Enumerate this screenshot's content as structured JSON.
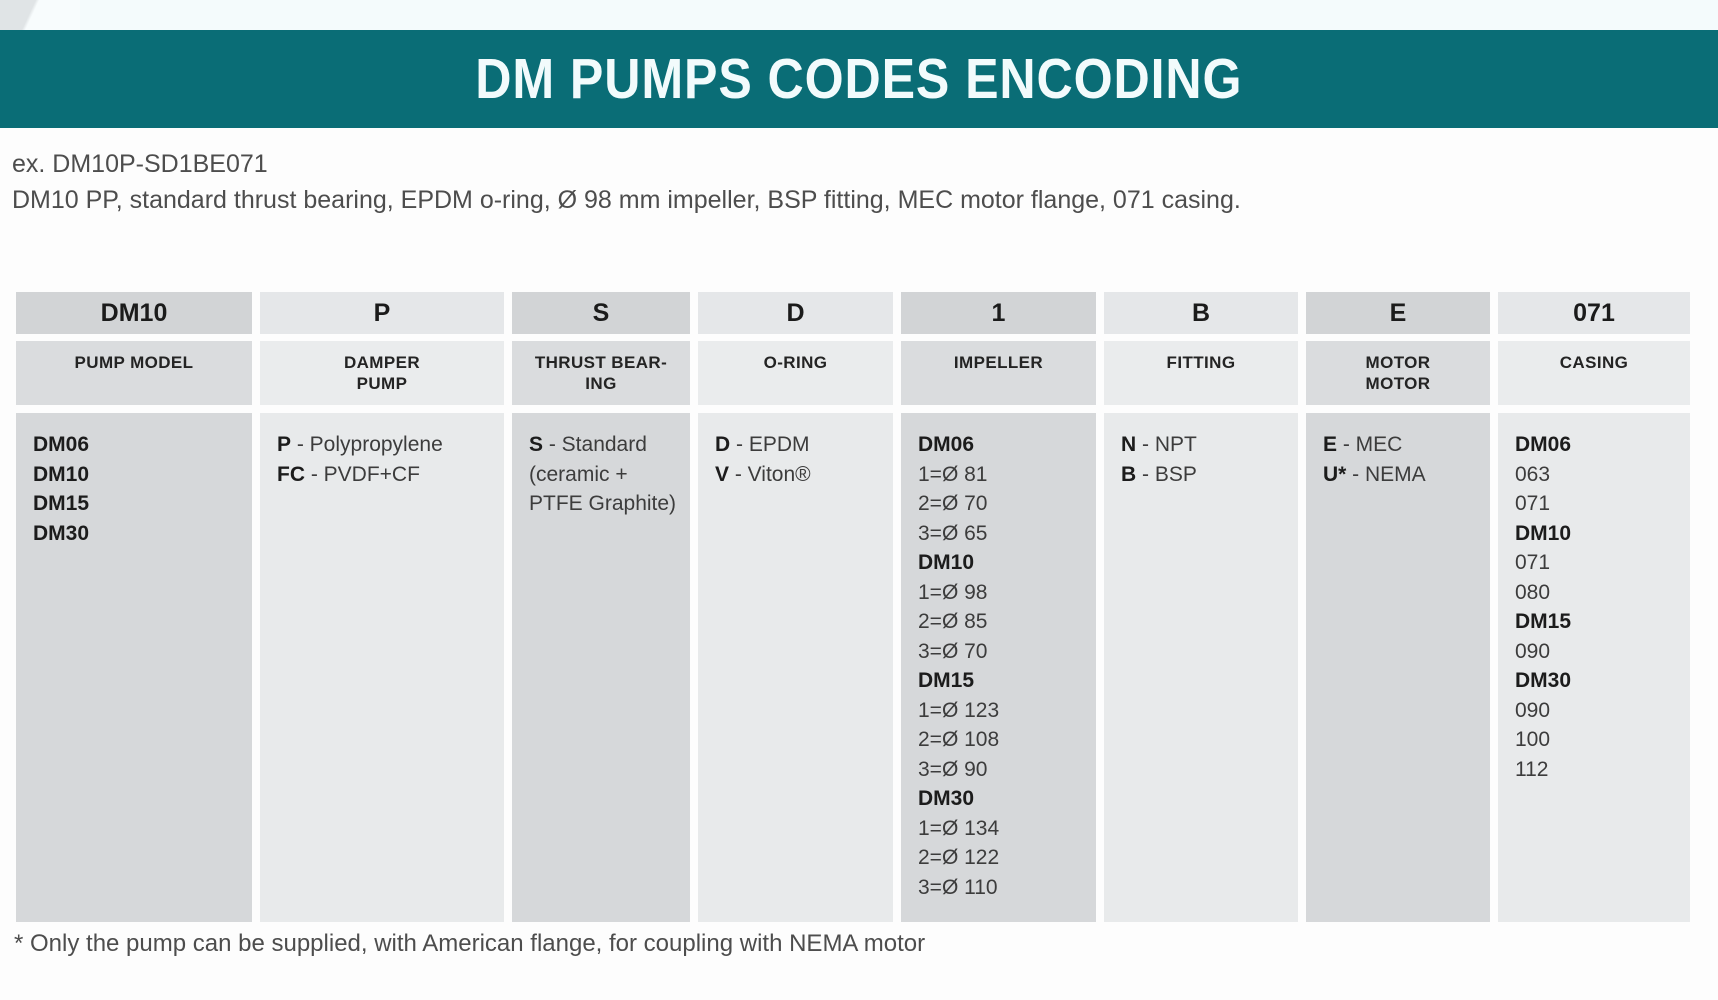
{
  "banner": {
    "title": "DM PUMPS CODES ENCODING",
    "bg_color": "#0a6d76",
    "text_color": "#f2fbfc"
  },
  "example": {
    "line1": "ex. DM10P-SD1BE071",
    "line2": "DM10 PP, standard thrust bearing, EPDM o-ring, Ø 98 mm impeller, BSP fitting, MEC motor flange, 071 casing."
  },
  "table": {
    "columns": [
      {
        "code": "DM10",
        "label": [
          "PUMP MODEL"
        ],
        "body": [
          {
            "b": "DM06"
          },
          {
            "b": "DM10"
          },
          {
            "b": "DM15"
          },
          {
            "b": "DM30"
          }
        ]
      },
      {
        "code": "P",
        "label": [
          "DAMPER",
          "PUMP"
        ],
        "body": [
          {
            "b": "P",
            "t": " - Polypropylene"
          },
          {
            "b": "FC",
            "t": " - PVDF+CF"
          }
        ]
      },
      {
        "code": "S",
        "label": [
          "THRUST BEAR-",
          "ING"
        ],
        "body": [
          {
            "b": "S",
            "t": " - Standard"
          },
          {
            "t": "(ceramic +"
          },
          {
            "t": "PTFE Graphite)"
          }
        ]
      },
      {
        "code": "D",
        "label": [
          "O-RING"
        ],
        "body": [
          {
            "b": "D",
            "t": " - EPDM"
          },
          {
            "b": "V",
            "t": " - Viton®"
          }
        ]
      },
      {
        "code": "1",
        "label": [
          "IMPELLER"
        ],
        "body": [
          {
            "b": "DM06"
          },
          {
            "t": "1=Ø 81"
          },
          {
            "t": "2=Ø 70"
          },
          {
            "t": "3=Ø 65"
          },
          {
            "b": "DM10"
          },
          {
            "t": "1=Ø 98"
          },
          {
            "t": "2=Ø 85"
          },
          {
            "t": "3=Ø 70"
          },
          {
            "b": "DM15"
          },
          {
            "t": "1=Ø 123"
          },
          {
            "t": "2=Ø 108"
          },
          {
            "t": "3=Ø 90"
          },
          {
            "b": "DM30"
          },
          {
            "t": "1=Ø 134"
          },
          {
            "t": "2=Ø 122"
          },
          {
            "t": "3=Ø 110"
          }
        ]
      },
      {
        "code": "B",
        "label": [
          "FITTING"
        ],
        "body": [
          {
            "b": "N",
            "t": " - NPT"
          },
          {
            "b": "B",
            "t": " - BSP"
          }
        ]
      },
      {
        "code": "E",
        "label": [
          "MOTOR",
          "MOTOR"
        ],
        "body": [
          {
            "b": "E",
            "t": " - MEC"
          },
          {
            "b": "U*",
            "t": " - NEMA"
          }
        ]
      },
      {
        "code": "071",
        "label": [
          "CASING"
        ],
        "body": [
          {
            "b": "DM06"
          },
          {
            "t": "063"
          },
          {
            "t": "071"
          },
          {
            "b": "DM10"
          },
          {
            "t": "071"
          },
          {
            "t": "080"
          },
          {
            "b": "DM15"
          },
          {
            "t": "090"
          },
          {
            "b": "DM30"
          },
          {
            "t": "090"
          },
          {
            "t": "100"
          },
          {
            "t": "112"
          }
        ]
      }
    ]
  },
  "footnote": "* Only the pump can be supplied, with American flange, for coupling with NEMA motor"
}
